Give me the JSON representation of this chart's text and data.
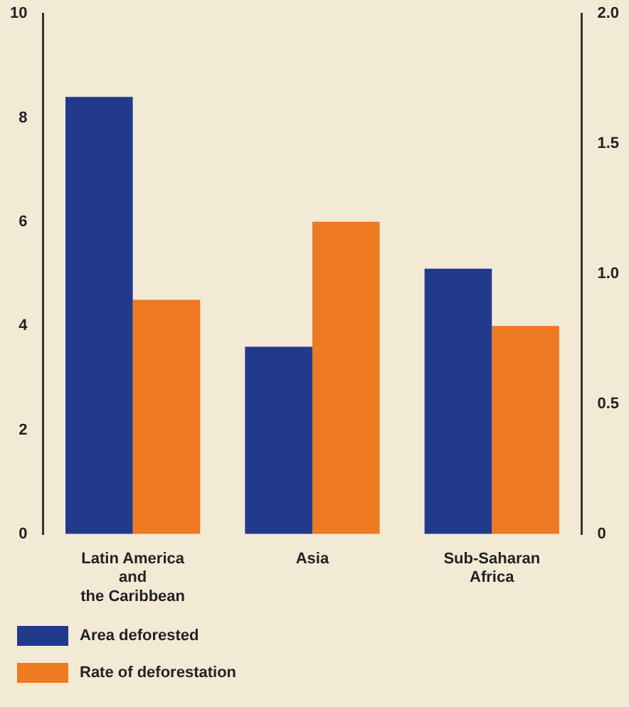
{
  "chart_data": {
    "type": "bar",
    "categories": [
      "Latin America\nand\nthe Caribbean",
      "Asia",
      "Sub-Saharan\nAfrica"
    ],
    "series": [
      {
        "name": "Area deforested",
        "color": "#223a8c",
        "values": [
          8.4,
          3.6,
          5.1
        ]
      },
      {
        "name": "Rate of deforestation",
        "color": "#ee7a22",
        "values": [
          0.9,
          1.2,
          0.8
        ],
        "axis": "y2"
      }
    ],
    "ylim": [
      0,
      10
    ],
    "yticks": [
      0,
      2,
      4,
      6,
      8,
      10
    ],
    "y2lim": [
      0,
      2.0
    ],
    "y2ticks": [
      0,
      {
        "value": 0.5,
        "label": "0.5"
      },
      {
        "value": 1,
        "label": "1.0"
      },
      {
        "value": 1.5,
        "label": "1.5"
      },
      {
        "value": 2,
        "label": "2.0"
      }
    ],
    "grid": false,
    "legend": "bottom left"
  }
}
